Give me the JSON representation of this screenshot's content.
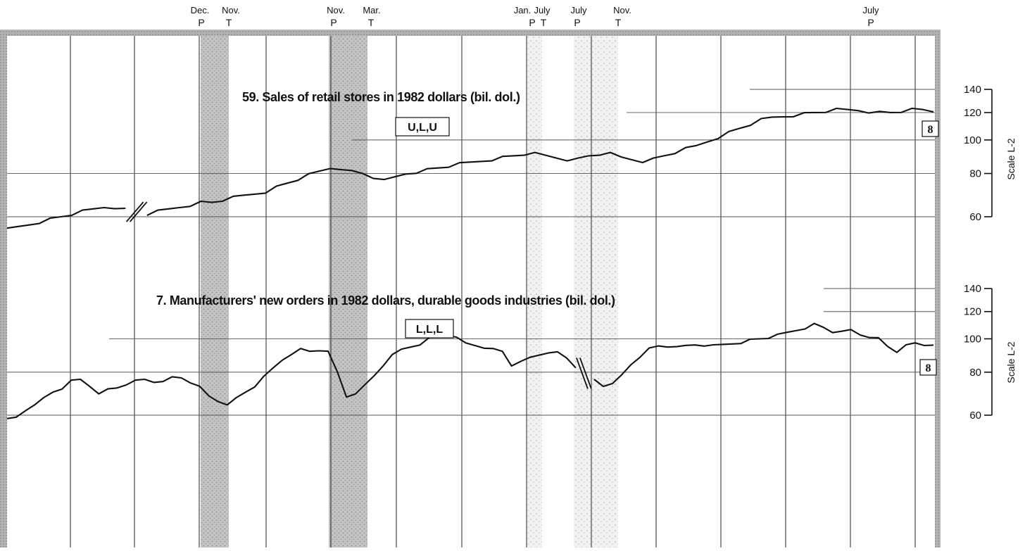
{
  "colors": {
    "ink": "#111111",
    "grid": "#222222",
    "shade": "#b8b8b8",
    "frame": "#9a9a9a"
  },
  "turning_points": [
    {
      "month": "Dec.",
      "type": "P"
    },
    {
      "month": "Nov.",
      "type": "T"
    },
    {
      "month": "Nov.",
      "type": "P"
    },
    {
      "month": "Mar.",
      "type": "T"
    },
    {
      "month": "Jan.",
      "type": "P"
    },
    {
      "month": "July",
      "type": "T"
    },
    {
      "month": "July",
      "type": "P"
    },
    {
      "month": "Nov.",
      "type": "T"
    },
    {
      "month": "July",
      "type": "P"
    }
  ],
  "chart_data": [
    {
      "type": "line",
      "title": "59. Sales of retail stores in 1982 dollars (bil. dol.)",
      "timing_code": "U,L,U",
      "badge": "8",
      "scale_label": "Scale L-2",
      "log_scale": true,
      "y_ticks": [
        60,
        80,
        100,
        120,
        140
      ],
      "ylim": [
        60,
        140
      ],
      "series": [
        {
          "values": [
            55,
            56,
            57,
            58,
            59,
            60,
            61,
            62,
            63,
            64,
            64,
            63,
            null,
            61,
            62,
            63,
            64,
            65,
            66,
            66,
            67,
            68,
            69,
            70,
            71,
            73,
            75,
            77,
            79,
            81,
            83,
            83,
            81,
            80,
            78,
            76,
            78,
            80,
            81,
            82,
            83,
            84,
            85,
            86,
            87,
            88,
            89,
            90,
            91,
            91,
            90,
            89,
            88,
            88,
            90,
            91,
            91,
            89,
            88,
            87,
            88,
            90,
            92,
            94,
            96,
            99,
            102,
            105,
            108,
            111,
            114,
            116,
            117,
            118,
            119,
            120,
            121,
            122,
            122,
            122,
            121,
            120,
            120,
            121,
            122,
            122,
            121
          ]
        }
      ]
    },
    {
      "type": "line",
      "title": "7. Manufacturers' new orders in 1982 dollars, durable goods industries (bil. dol.)",
      "timing_code": "L,L,L",
      "badge": "8",
      "scale_label": "Scale L-2",
      "log_scale": true,
      "y_ticks": [
        60,
        80,
        100,
        120,
        140
      ],
      "ylim": [
        60,
        140
      ],
      "series": [
        {
          "values": [
            58,
            59,
            62,
            65,
            67,
            70,
            72,
            75,
            76,
            73,
            70,
            71,
            72,
            74,
            75,
            76,
            75,
            76,
            77,
            77,
            75,
            72,
            68,
            66,
            65,
            67,
            70,
            73,
            77,
            82,
            87,
            91,
            93,
            92,
            93,
            91,
            80,
            68,
            70,
            73,
            78,
            84,
            89,
            93,
            95,
            97,
            100,
            104,
            103,
            100,
            97,
            96,
            95,
            93,
            92,
            84,
            85,
            88,
            90,
            92,
            91,
            88,
            83,
            null,
            76,
            73,
            75,
            78,
            84,
            89,
            93,
            95,
            95,
            96,
            95,
            96,
            96,
            95,
            96,
            97,
            98,
            99,
            100,
            101,
            102,
            104,
            106,
            108,
            110,
            108,
            105,
            104,
            106,
            103,
            102,
            100,
            95,
            92,
            95,
            97,
            96,
            97
          ]
        }
      ]
    }
  ]
}
